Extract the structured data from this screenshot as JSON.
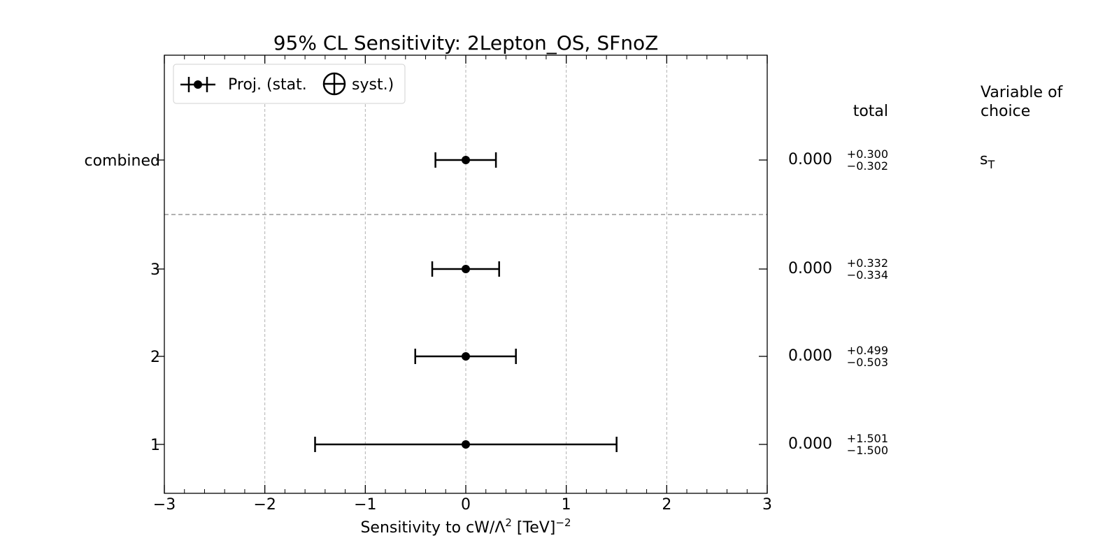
{
  "chart_data": {
    "type": "errorbar",
    "title": "95% CL Sensitivity: 2Lepton_OS, SFnoZ",
    "xlabel": {
      "prefix": "Sensitivity to cW/Λ",
      "sup1": "2",
      "middle": " [TeV]",
      "sup2": "−2"
    },
    "xlim": [
      -3,
      3
    ],
    "xticks": [
      -3,
      -2,
      -1,
      0,
      1,
      2,
      3
    ],
    "xtick_labels": [
      "−3",
      "−2",
      "−1",
      "0",
      "1",
      "2",
      "3"
    ],
    "grid": "x-dashed",
    "legend": {
      "position": "top-left",
      "label_before": "Proj. (stat.",
      "label_after": "syst.)"
    },
    "column_headers": {
      "total": "total",
      "variable_line1": "Variable of",
      "variable_line2": "choice"
    },
    "rows": [
      {
        "label": "combined",
        "center": 0.0,
        "err_plus": 0.3,
        "err_minus": 0.302,
        "central_text": "0.000",
        "plus_text": "+0.300",
        "minus_text": "−0.302",
        "variable": "s",
        "variable_sub": "T"
      },
      {
        "label": "3",
        "center": 0.0,
        "err_plus": 0.332,
        "err_minus": 0.334,
        "central_text": "0.000",
        "plus_text": "+0.332",
        "minus_text": "−0.334"
      },
      {
        "label": "2",
        "center": 0.0,
        "err_plus": 0.499,
        "err_minus": 0.503,
        "central_text": "0.000",
        "plus_text": "+0.499",
        "minus_text": "−0.503"
      },
      {
        "label": "1",
        "center": 0.0,
        "err_plus": 1.501,
        "err_minus": 1.5,
        "central_text": "0.000",
        "plus_text": "+1.501",
        "minus_text": "−1.500"
      }
    ],
    "separator_after_row": 0
  }
}
